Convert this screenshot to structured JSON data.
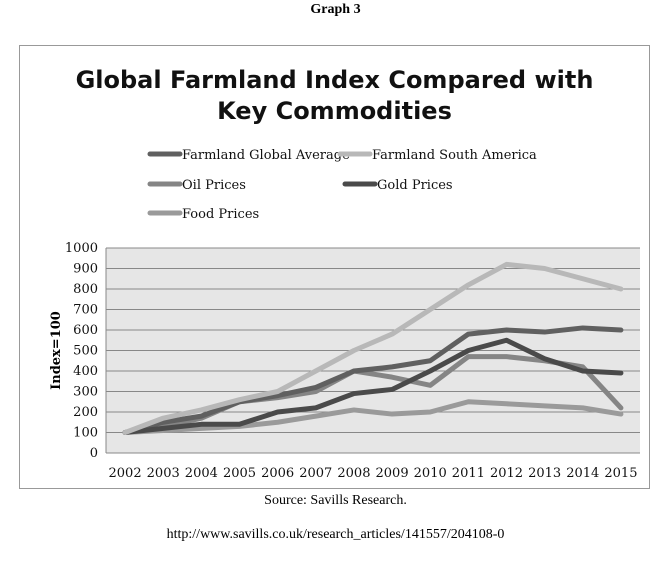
{
  "page": {
    "label": "Graph 3",
    "source": "Source: Savills Research.",
    "url": "http://www.savills.co.uk/research_articles/141557/204108-0"
  },
  "chart_data": {
    "type": "line",
    "title": "Global Farmland Index Compared with Key Commodities",
    "title_lines": [
      "Global Farmland Index Compared with",
      "Key Commodities"
    ],
    "xlabel": "",
    "ylabel": "Index=100",
    "ylim": [
      0,
      1000
    ],
    "yticks": [
      0,
      100,
      200,
      300,
      400,
      500,
      600,
      700,
      800,
      900,
      1000
    ],
    "grid": true,
    "legend": "top",
    "x": [
      "2002",
      "2003",
      "2004",
      "2005",
      "2006",
      "2007",
      "2008",
      "2009",
      "2010",
      "2011",
      "2012",
      "2013",
      "2014",
      "2015"
    ],
    "series": [
      {
        "name": "Farmland Global Average",
        "color": "#606060",
        "values": [
          100,
          150,
          180,
          250,
          280,
          320,
          400,
          420,
          450,
          580,
          600,
          590,
          610,
          600
        ]
      },
      {
        "name": "Farmland South America",
        "color": "#b8b8b8",
        "values": [
          100,
          170,
          210,
          260,
          300,
          400,
          500,
          580,
          700,
          820,
          920,
          900,
          850,
          800
        ]
      },
      {
        "name": "Oil Prices",
        "color": "#858585",
        "values": [
          100,
          130,
          170,
          250,
          270,
          300,
          400,
          370,
          330,
          470,
          470,
          450,
          420,
          220
        ]
      },
      {
        "name": "Gold Prices",
        "color": "#4a4a4a",
        "values": [
          100,
          120,
          140,
          140,
          200,
          220,
          290,
          310,
          400,
          500,
          550,
          460,
          400,
          390
        ]
      },
      {
        "name": "Food Prices",
        "color": "#9a9a9a",
        "values": [
          100,
          110,
          120,
          130,
          150,
          180,
          210,
          190,
          200,
          250,
          240,
          230,
          220,
          190
        ]
      }
    ]
  }
}
